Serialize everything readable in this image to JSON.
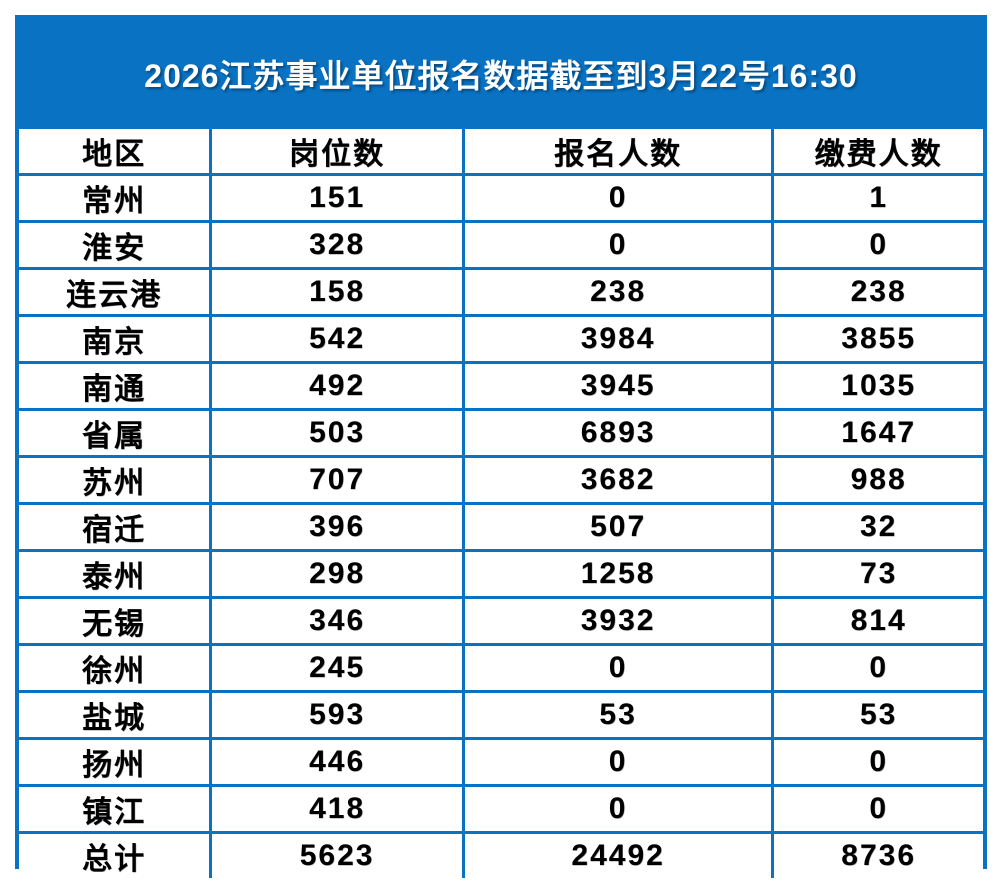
{
  "title": "2026江苏事业单位报名数据截至到3月22号16:30",
  "colors": {
    "banner_blue": "#0972C3",
    "border_blue": "#0972C3",
    "title_text": "#FFFFFF",
    "cell_text": "#000000",
    "cell_background": "#FFFFFF"
  },
  "table": {
    "headers": [
      "地区",
      "岗位数",
      "报名人数",
      "缴费人数"
    ],
    "rows": [
      [
        "常州",
        "151",
        "0",
        "1"
      ],
      [
        "淮安",
        "328",
        "0",
        "0"
      ],
      [
        "连云港",
        "158",
        "238",
        "238"
      ],
      [
        "南京",
        "542",
        "3984",
        "3855"
      ],
      [
        "南通",
        "492",
        "3945",
        "1035"
      ],
      [
        "省属",
        "503",
        "6893",
        "1647"
      ],
      [
        "苏州",
        "707",
        "3682",
        "988"
      ],
      [
        "宿迁",
        "396",
        "507",
        "32"
      ],
      [
        "泰州",
        "298",
        "1258",
        "73"
      ],
      [
        "无锡",
        "346",
        "3932",
        "814"
      ],
      [
        "徐州",
        "245",
        "0",
        "0"
      ],
      [
        "盐城",
        "593",
        "53",
        "53"
      ],
      [
        "扬州",
        "446",
        "0",
        "0"
      ],
      [
        "镇江",
        "418",
        "0",
        "0"
      ],
      [
        "总计",
        "5623",
        "24492",
        "8736"
      ]
    ]
  },
  "chart_data": {
    "type": "table",
    "title": "2026江苏事业单位报名数据截至到3月22号16:30",
    "columns": [
      "地区",
      "岗位数",
      "报名人数",
      "缴费人数"
    ],
    "categories": [
      "常州",
      "淮安",
      "连云港",
      "南京",
      "南通",
      "省属",
      "苏州",
      "宿迁",
      "泰州",
      "无锡",
      "徐州",
      "盐城",
      "扬州",
      "镇江"
    ],
    "series": [
      {
        "name": "岗位数",
        "values": [
          151,
          328,
          158,
          542,
          492,
          503,
          707,
          396,
          298,
          346,
          245,
          593,
          446,
          418
        ]
      },
      {
        "name": "报名人数",
        "values": [
          0,
          0,
          238,
          3984,
          3945,
          6893,
          3682,
          507,
          1258,
          3932,
          0,
          53,
          0,
          0
        ]
      },
      {
        "name": "缴费人数",
        "values": [
          1,
          0,
          238,
          3855,
          1035,
          1647,
          988,
          32,
          73,
          814,
          0,
          53,
          0,
          0
        ]
      }
    ],
    "totals": {
      "label": "总计",
      "岗位数": 5623,
      "报名人数": 24492,
      "缴费人数": 8736
    }
  }
}
